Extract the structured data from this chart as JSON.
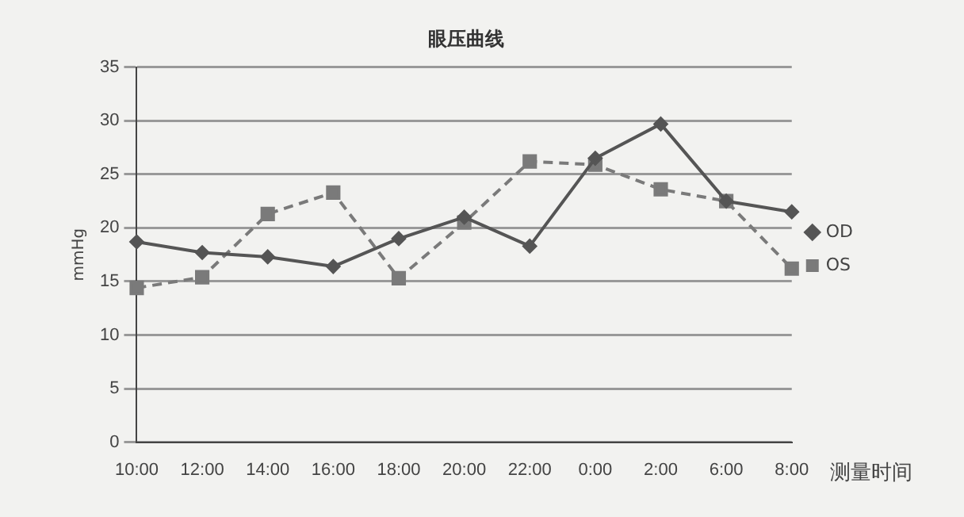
{
  "chart_data": {
    "type": "line",
    "title": "眼压曲线",
    "xlabel": "测量时间",
    "ylabel": "mmHg",
    "categories": [
      "10:00",
      "12:00",
      "14:00",
      "16:00",
      "18:00",
      "20:00",
      "22:00",
      "0:00",
      "2:00",
      "6:00",
      "8:00"
    ],
    "series": [
      {
        "name": "OD",
        "color": "#555555",
        "marker": "diamond",
        "line_style": "solid",
        "values": [
          18.7,
          17.7,
          17.3,
          16.4,
          19,
          21,
          18.3,
          26.5,
          29.7,
          22.5,
          21.5
        ]
      },
      {
        "name": "OS",
        "color": "#7a7a7a",
        "marker": "square",
        "line_style": "dashed",
        "values": [
          14.4,
          15.4,
          21.3,
          23.3,
          15.3,
          20.5,
          26.2,
          25.9,
          23.6,
          22.5,
          16.2
        ]
      }
    ],
    "ylim": [
      0,
      35
    ],
    "yticks": [
      0,
      5,
      10,
      15,
      20,
      25,
      30,
      35
    ],
    "grid": "y",
    "legend": "right"
  }
}
